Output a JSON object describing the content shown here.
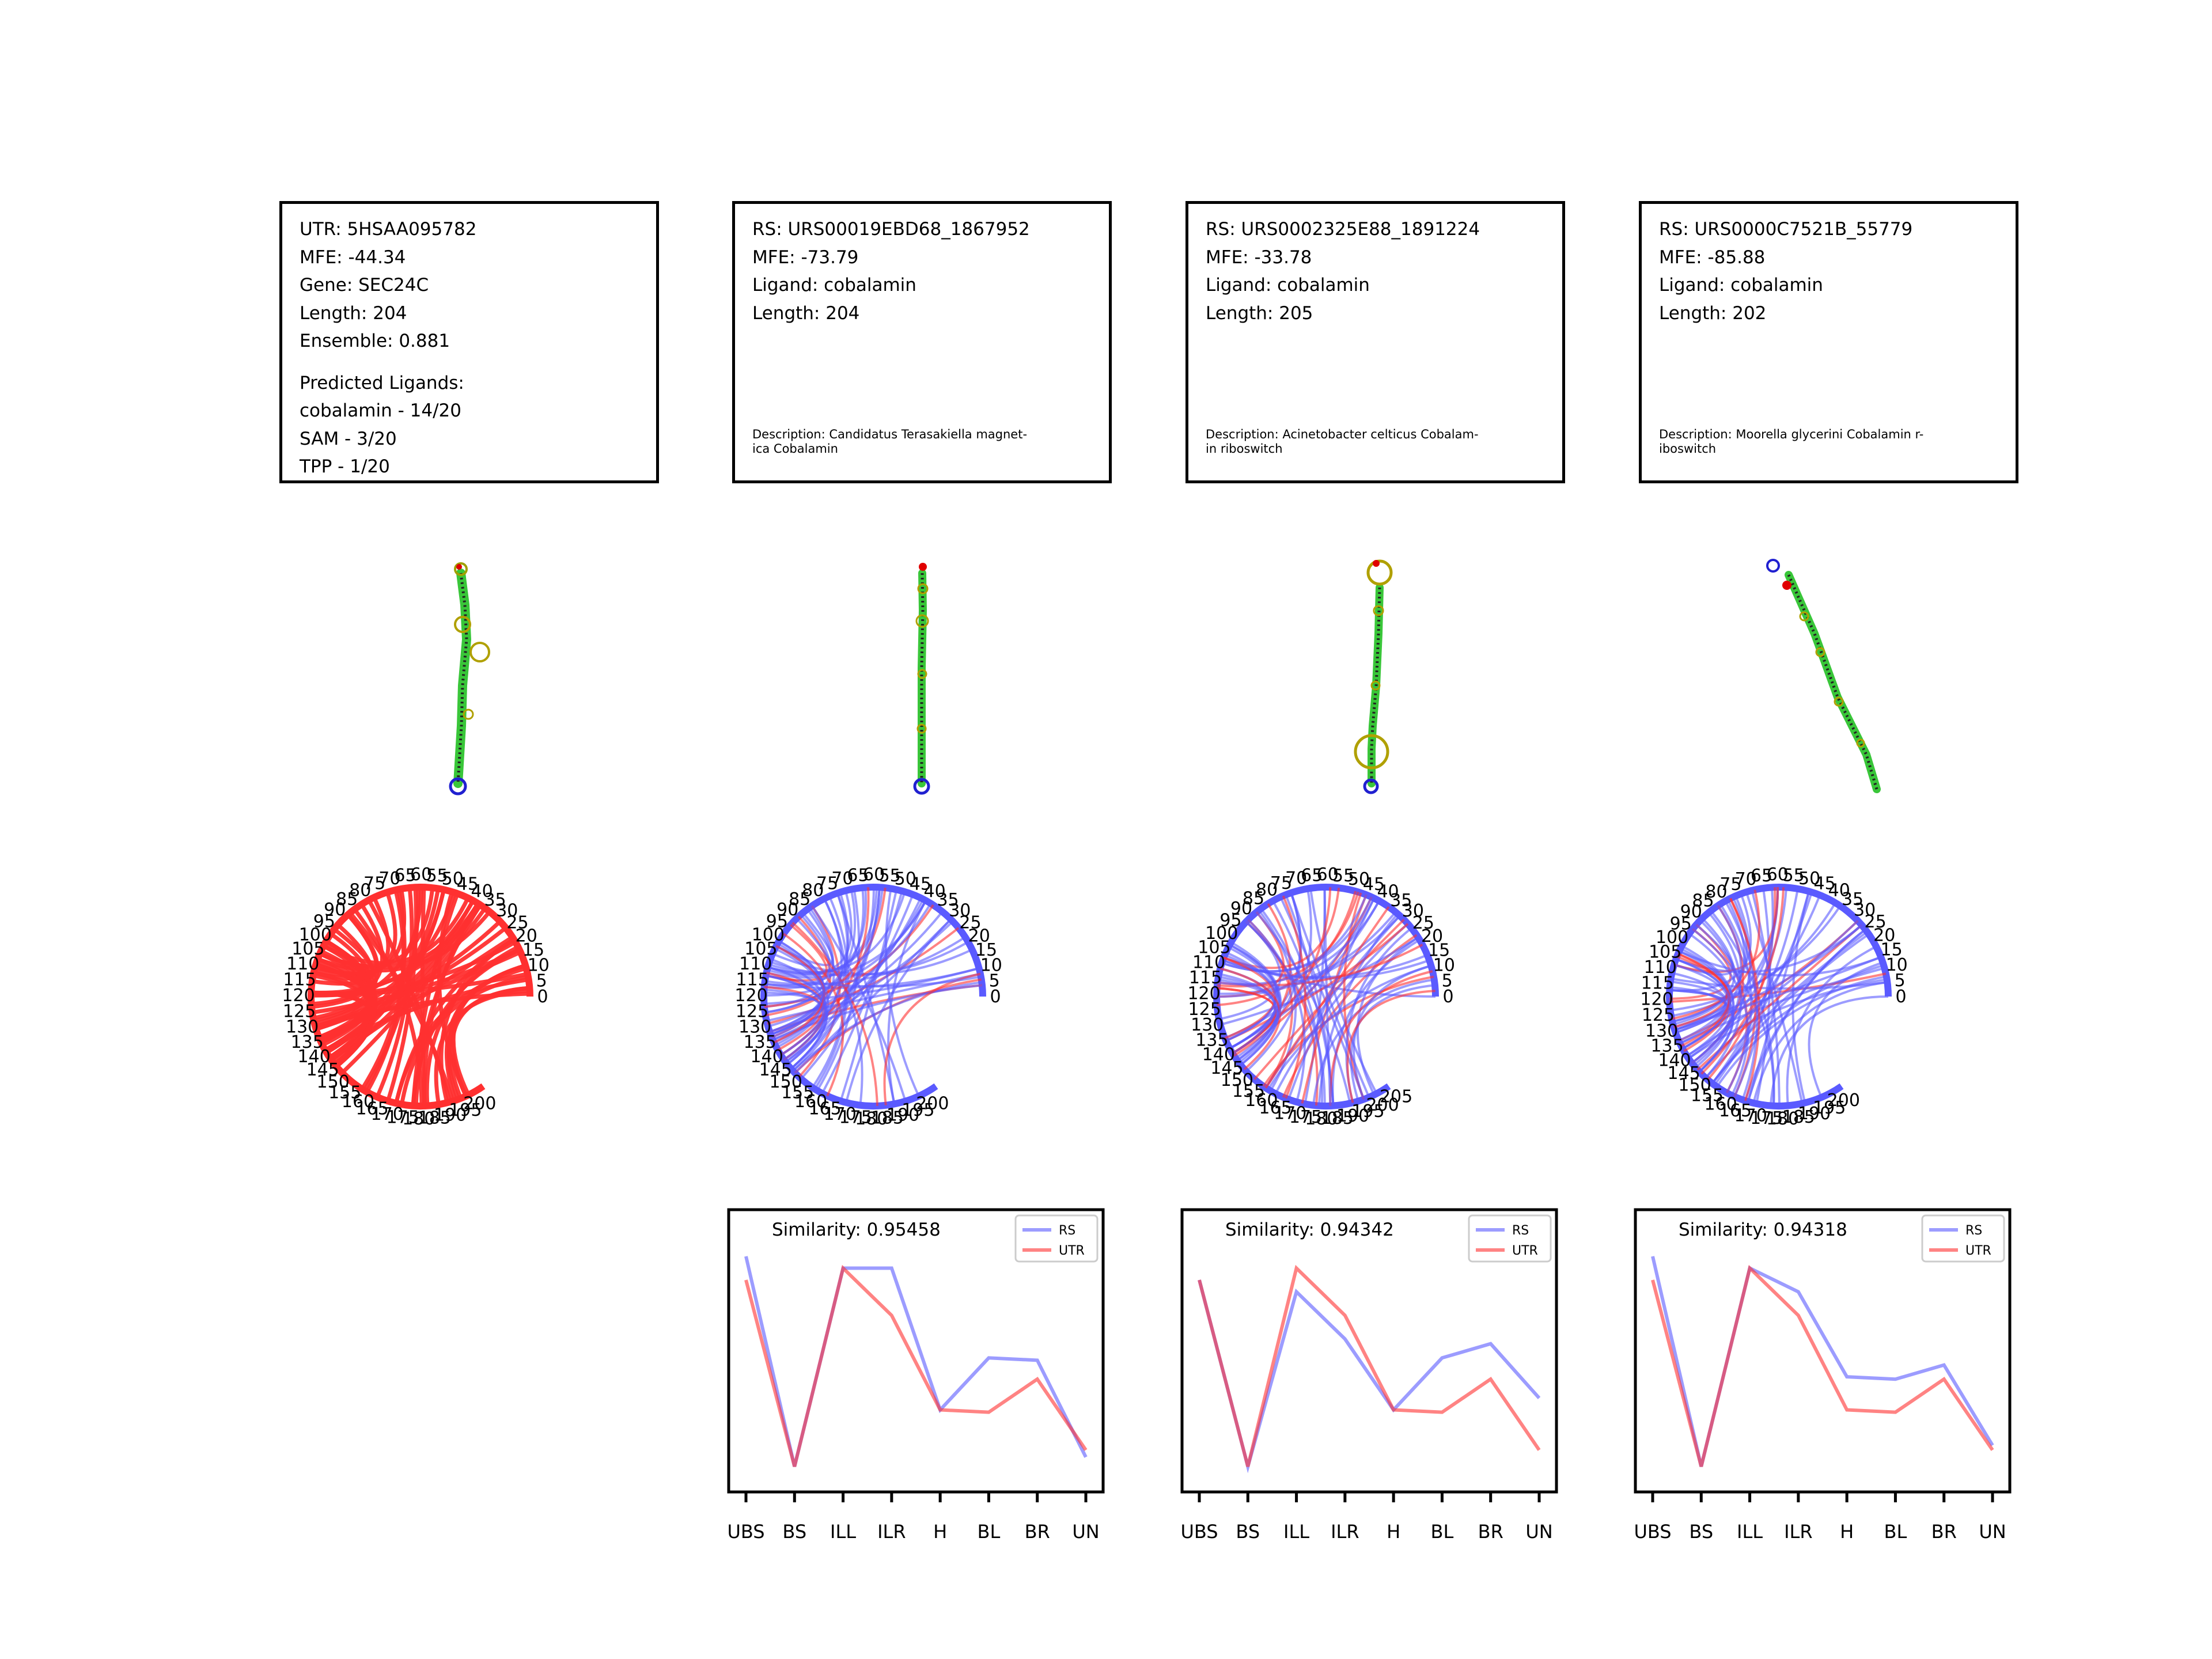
{
  "colors": {
    "rs": "#5a5aff",
    "utr": "#ff3030",
    "stem": "#39c639",
    "rna_blue": "#2020d0"
  },
  "icons": [
    "rna-secondary-structure-icon",
    "arc-diagram-icon"
  ],
  "info_boxes": [
    {
      "lines": [
        "UTR: 5HSAA095782",
        "MFE: -44.34",
        "Gene: SEC24C",
        "Length: 204",
        "Ensemble: 0.881"
      ],
      "extra_lines": [
        "Predicted Ligands:",
        "cobalamin - 14/20",
        "SAM - 3/20",
        "TPP - 1/20"
      ],
      "description": []
    },
    {
      "lines": [
        "RS: URS00019EBD68_1867952",
        "MFE: -73.79",
        "Ligand: cobalamin",
        "Length: 204"
      ],
      "extra_lines": [],
      "description": [
        "Description: Candidatus Terasakiella magnet-",
        "ica Cobalamin"
      ]
    },
    {
      "lines": [
        "RS: URS0002325E88_1891224",
        "MFE: -33.78",
        "Ligand: cobalamin",
        "Length: 205"
      ],
      "extra_lines": [],
      "description": [
        "Description: Acinetobacter celticus Cobalam-",
        "in riboswitch"
      ]
    },
    {
      "lines": [
        "RS: URS0000C7521B_55779",
        "MFE: -85.88",
        "Ligand: cobalamin",
        "Length: 202"
      ],
      "extra_lines": [],
      "description": [
        "Description: Moorella glycerini Cobalamin r-",
        "iboswitch"
      ]
    }
  ],
  "arc_diagrams": [
    {
      "length": 204,
      "tick_step": 5,
      "mix": "utr"
    },
    {
      "length": 204,
      "tick_step": 5,
      "mix": "mostly-rs"
    },
    {
      "length": 205,
      "tick_step": 5,
      "mix": "mixed"
    },
    {
      "length": 202,
      "tick_step": 5,
      "mix": "mostly-rs"
    }
  ],
  "chart_data": [
    {
      "type": "line",
      "title": "Similarity: 0.95458",
      "categories": [
        "UBS",
        "BS",
        "ILL",
        "ILR",
        "H",
        "BL",
        "BR",
        "UN"
      ],
      "series": [
        {
          "name": "RS",
          "values": [
            0.9,
            0.01,
            0.85,
            0.85,
            0.25,
            0.47,
            0.46,
            0.05
          ]
        },
        {
          "name": "UTR",
          "values": [
            0.8,
            0.01,
            0.85,
            0.65,
            0.25,
            0.24,
            0.38,
            0.08
          ]
        }
      ],
      "ylim": [
        0,
        1
      ],
      "legend": "top-right"
    },
    {
      "type": "line",
      "title": "Similarity: 0.94342",
      "categories": [
        "UBS",
        "BS",
        "ILL",
        "ILR",
        "H",
        "BL",
        "BR",
        "UN"
      ],
      "series": [
        {
          "name": "RS",
          "values": [
            0.8,
            0.01,
            0.75,
            0.55,
            0.25,
            0.47,
            0.53,
            0.3
          ]
        },
        {
          "name": "UTR",
          "values": [
            0.8,
            0.01,
            0.85,
            0.65,
            0.25,
            0.24,
            0.38,
            0.08
          ]
        }
      ],
      "ylim": [
        0,
        1
      ],
      "legend": "top-right"
    },
    {
      "type": "line",
      "title": "Similarity: 0.94318",
      "categories": [
        "UBS",
        "BS",
        "ILL",
        "ILR",
        "H",
        "BL",
        "BR",
        "UN"
      ],
      "series": [
        {
          "name": "RS",
          "values": [
            0.9,
            0.01,
            0.85,
            0.75,
            0.39,
            0.38,
            0.44,
            0.1
          ]
        },
        {
          "name": "UTR",
          "values": [
            0.8,
            0.01,
            0.85,
            0.65,
            0.25,
            0.24,
            0.38,
            0.08
          ]
        }
      ],
      "ylim": [
        0,
        1
      ],
      "legend": "top-right"
    }
  ]
}
